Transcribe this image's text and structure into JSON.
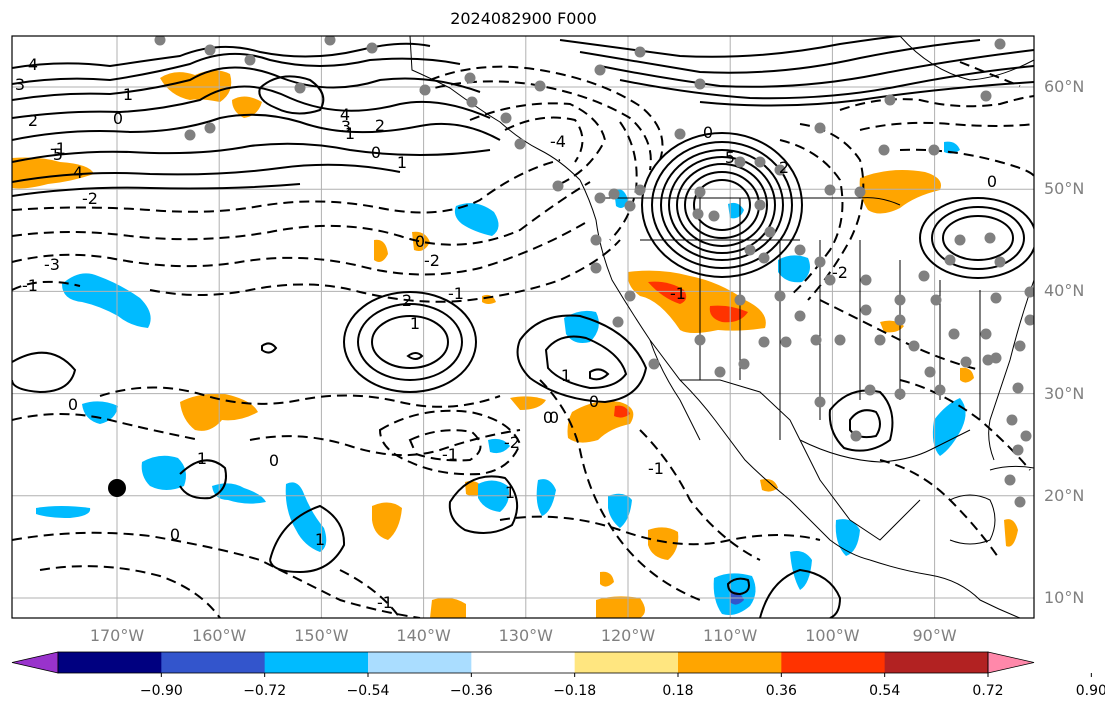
{
  "title": "2024082900 F000",
  "lat_labels": [
    {
      "text": "60°N",
      "lat": 60
    },
    {
      "text": "50°N",
      "lat": 50
    },
    {
      "text": "40°N",
      "lat": 40
    },
    {
      "text": "30°N",
      "lat": 30
    },
    {
      "text": "20°N",
      "lat": 20
    },
    {
      "text": "10°N",
      "lat": 10
    }
  ],
  "lon_labels": [
    {
      "text": "170°W",
      "lon": -170
    },
    {
      "text": "160°W",
      "lon": -160
    },
    {
      "text": "150°W",
      "lon": -150
    },
    {
      "text": "140°W",
      "lon": -140
    },
    {
      "text": "130°W",
      "lon": -130
    },
    {
      "text": "120°W",
      "lon": -120
    },
    {
      "text": "110°W",
      "lon": -110
    },
    {
      "text": "100°W",
      "lon": -100
    },
    {
      "text": "90°W",
      "lon": -90
    }
  ],
  "colorbar": {
    "labels": [
      "−0.90",
      "−0.72",
      "−0.54",
      "−0.36",
      "−0.18",
      "0.18",
      "0.36",
      "0.54",
      "0.72",
      "0.90"
    ],
    "colors": [
      "#9933cc",
      "#000080",
      "#3355cc",
      "#00bbff",
      "#aaddff",
      "#ffffff",
      "#ffe680",
      "#ffa500",
      "#ff3300",
      "#b22222",
      "#ff88aa"
    ]
  },
  "contour_labels": [
    "4",
    "3",
    "2",
    "1",
    "0",
    "-1",
    "-2",
    "-3",
    "5",
    "4",
    "3",
    "2",
    "1",
    "0",
    "1",
    "2",
    "1",
    "0",
    "-1",
    "-2",
    "-1",
    "0",
    "1",
    "0",
    "-1",
    "-2",
    "5",
    "2",
    "0",
    "-1",
    "0",
    "-4",
    "4",
    "1",
    "-1",
    "0",
    "0",
    "1",
    "1",
    "0",
    "-1",
    "-2",
    "0"
  ],
  "map_colors": {
    "solid_contour": "#000000",
    "dashed_contour": "#000000",
    "grid": "#b0b0b0",
    "station_dot": "#808080",
    "marker": "#000000",
    "positive_light": "#ffe680",
    "positive_mid": "#ffa500",
    "positive_strong": "#ff3300",
    "negative_light": "#aaddff",
    "negative_mid": "#00bbff",
    "negative_strong": "#3355cc"
  }
}
